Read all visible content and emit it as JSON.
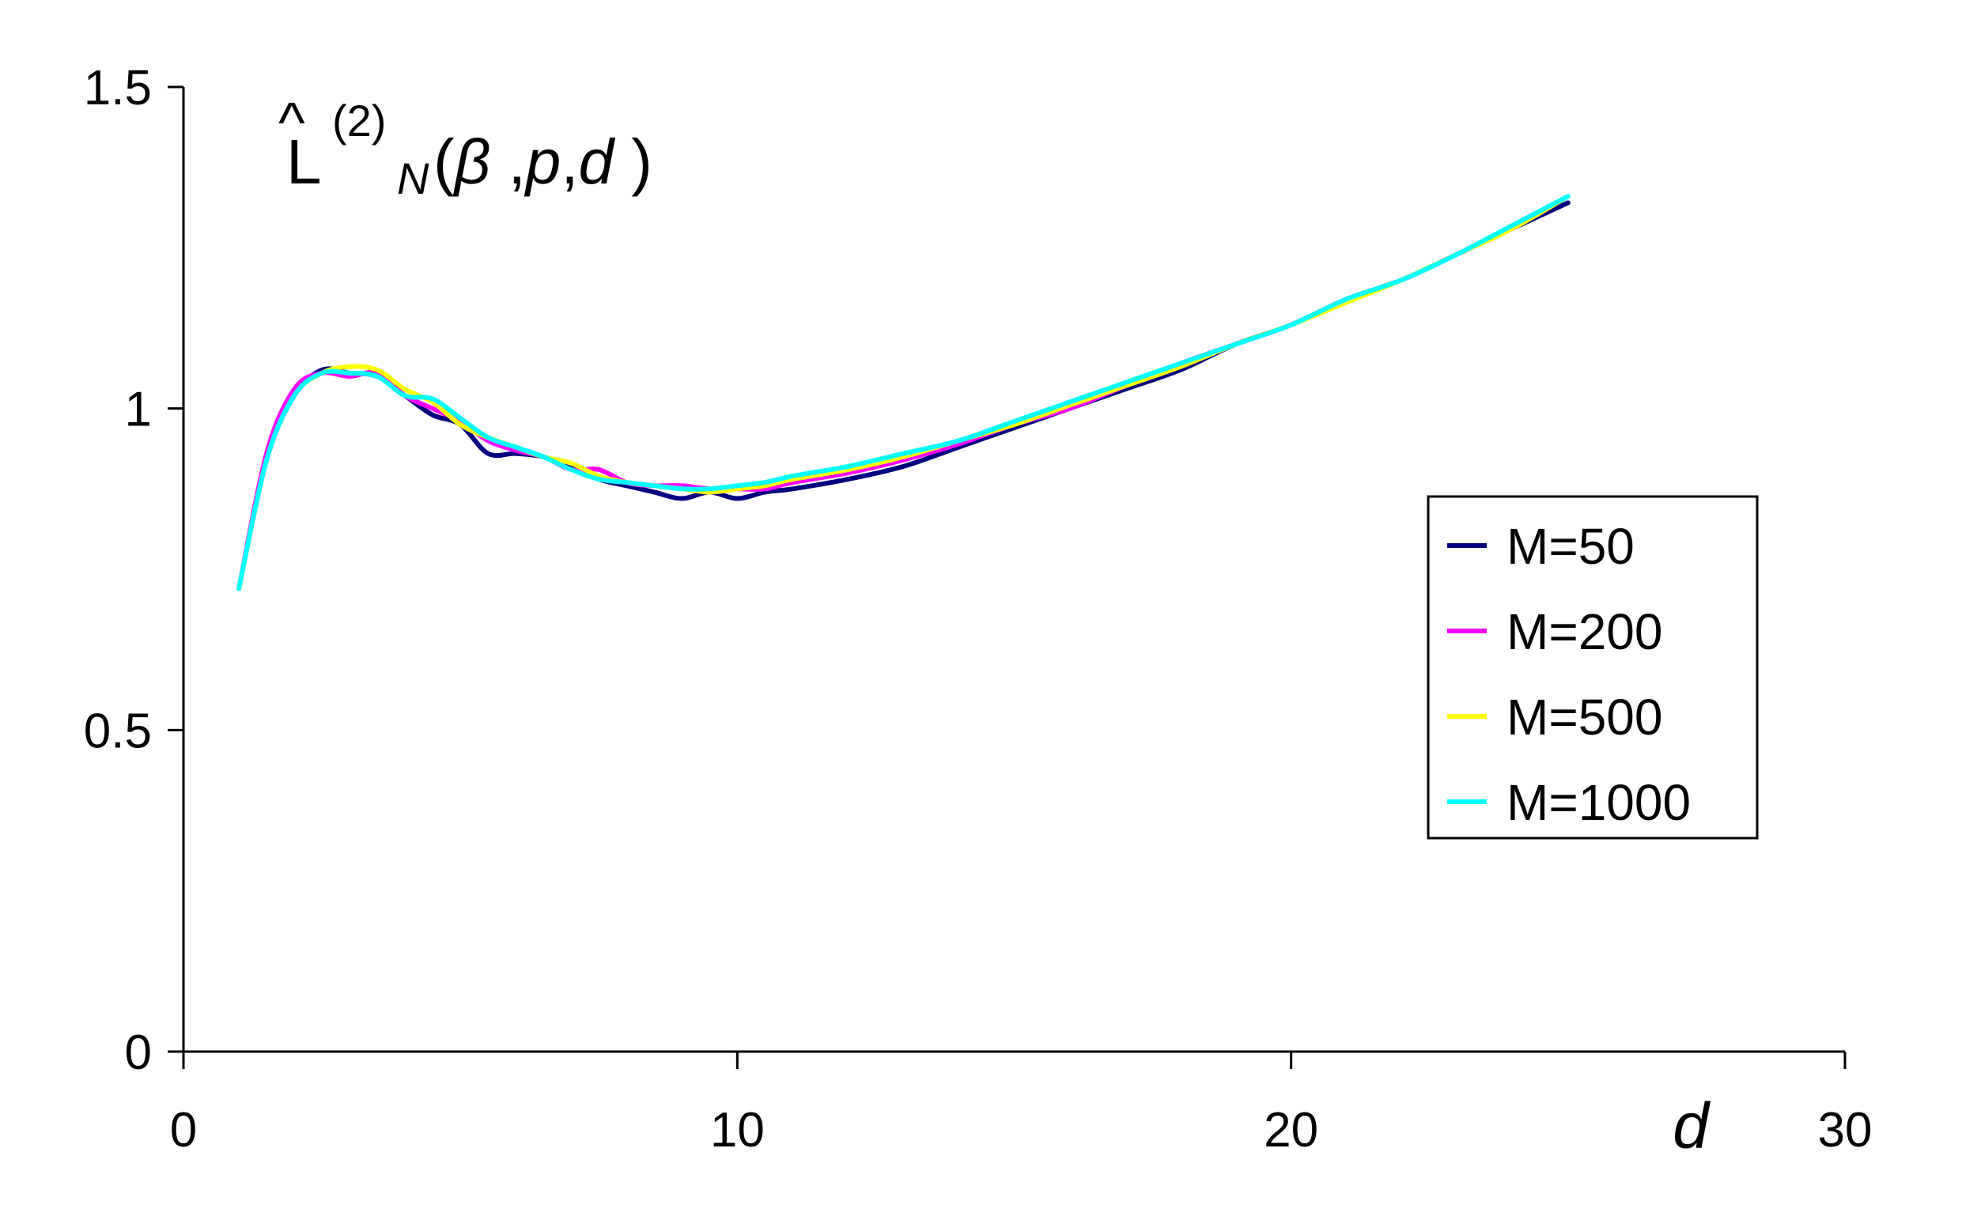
{
  "chart_data": {
    "type": "line",
    "title": {
      "hat": "^",
      "main": "L",
      "sup": "(2)",
      "sub": "N",
      "args": [
        "(",
        "β",
        " ,",
        "p",
        ",",
        "d",
        " )"
      ]
    },
    "xlabel": "d",
    "ylabel": "",
    "xlim": [
      0,
      30
    ],
    "ylim": [
      0,
      1.5
    ],
    "x_ticks": [
      0,
      10,
      20,
      30
    ],
    "x_tick_labels": [
      "0",
      "10",
      "20",
      "30"
    ],
    "y_ticks": [
      0,
      0.5,
      1,
      1.5
    ],
    "y_tick_labels": [
      "0",
      "0.5",
      "1",
      "1.5"
    ],
    "grid": false,
    "legend_position": "right",
    "series": [
      {
        "name": "M=50",
        "color": "#000080",
        "x": [
          1,
          1.5,
          2,
          2.5,
          3,
          3.5,
          4,
          4.5,
          5,
          5.5,
          6,
          6.5,
          7,
          7.5,
          8,
          8.5,
          9,
          9.5,
          10,
          10.5,
          11,
          12,
          13,
          14,
          15,
          16,
          17,
          18,
          19,
          20,
          21,
          22,
          23,
          24,
          25
        ],
        "y": [
          0.72,
          0.92,
          1.02,
          1.06,
          1.055,
          1.05,
          1.02,
          0.99,
          0.975,
          0.93,
          0.93,
          0.925,
          0.91,
          0.89,
          0.88,
          0.87,
          0.86,
          0.87,
          0.86,
          0.87,
          0.875,
          0.89,
          0.91,
          0.94,
          0.97,
          1.0,
          1.03,
          1.06,
          1.1,
          1.13,
          1.17,
          1.2,
          1.24,
          1.28,
          1.32
        ]
      },
      {
        "name": "M=200",
        "color": "#ff00ff",
        "x": [
          1,
          1.5,
          2,
          2.5,
          3,
          3.5,
          4,
          4.5,
          5,
          5.5,
          6,
          6.5,
          7,
          7.5,
          8,
          8.5,
          9,
          9.5,
          10,
          10.5,
          11,
          12,
          13,
          14,
          15,
          16,
          17,
          18,
          19,
          20,
          21,
          22,
          23,
          24,
          25
        ],
        "y": [
          0.72,
          0.93,
          1.03,
          1.055,
          1.05,
          1.055,
          1.02,
          1.0,
          0.98,
          0.95,
          0.935,
          0.925,
          0.905,
          0.905,
          0.885,
          0.88,
          0.88,
          0.875,
          0.875,
          0.875,
          0.885,
          0.9,
          0.92,
          0.945,
          0.975,
          1.0,
          1.035,
          1.07,
          1.1,
          1.13,
          1.17,
          1.2,
          1.24,
          1.28,
          1.33
        ]
      },
      {
        "name": "M=500",
        "color": "#ffff00",
        "x": [
          1,
          1.5,
          2,
          2.5,
          3,
          3.5,
          4,
          4.5,
          5,
          5.5,
          6,
          6.5,
          7,
          7.5,
          8,
          8.5,
          9,
          9.5,
          10,
          10.5,
          11,
          12,
          13,
          14,
          15,
          16,
          17,
          18,
          19,
          20,
          21,
          22,
          23,
          24,
          25
        ],
        "y": [
          0.72,
          0.92,
          1.02,
          1.055,
          1.065,
          1.06,
          1.03,
          1.01,
          0.975,
          0.955,
          0.94,
          0.925,
          0.915,
          0.895,
          0.885,
          0.88,
          0.875,
          0.87,
          0.875,
          0.88,
          0.89,
          0.905,
          0.925,
          0.95,
          0.975,
          1.005,
          1.035,
          1.065,
          1.1,
          1.13,
          1.165,
          1.2,
          1.24,
          1.28,
          1.33
        ]
      },
      {
        "name": "M=1000",
        "color": "#00ffff",
        "x": [
          1,
          1.5,
          2,
          2.5,
          3,
          3.5,
          4,
          4.5,
          5,
          5.5,
          6,
          6.5,
          7,
          7.5,
          8,
          8.5,
          9,
          9.5,
          10,
          10.5,
          11,
          12,
          13,
          14,
          15,
          16,
          17,
          18,
          19,
          20,
          21,
          22,
          23,
          24,
          25
        ],
        "y": [
          0.72,
          0.92,
          1.02,
          1.055,
          1.055,
          1.05,
          1.02,
          1.015,
          0.985,
          0.955,
          0.94,
          0.925,
          0.905,
          0.89,
          0.885,
          0.88,
          0.875,
          0.875,
          0.88,
          0.885,
          0.895,
          0.91,
          0.93,
          0.95,
          0.98,
          1.01,
          1.04,
          1.07,
          1.1,
          1.13,
          1.17,
          1.2,
          1.24,
          1.285,
          1.33
        ]
      }
    ]
  }
}
